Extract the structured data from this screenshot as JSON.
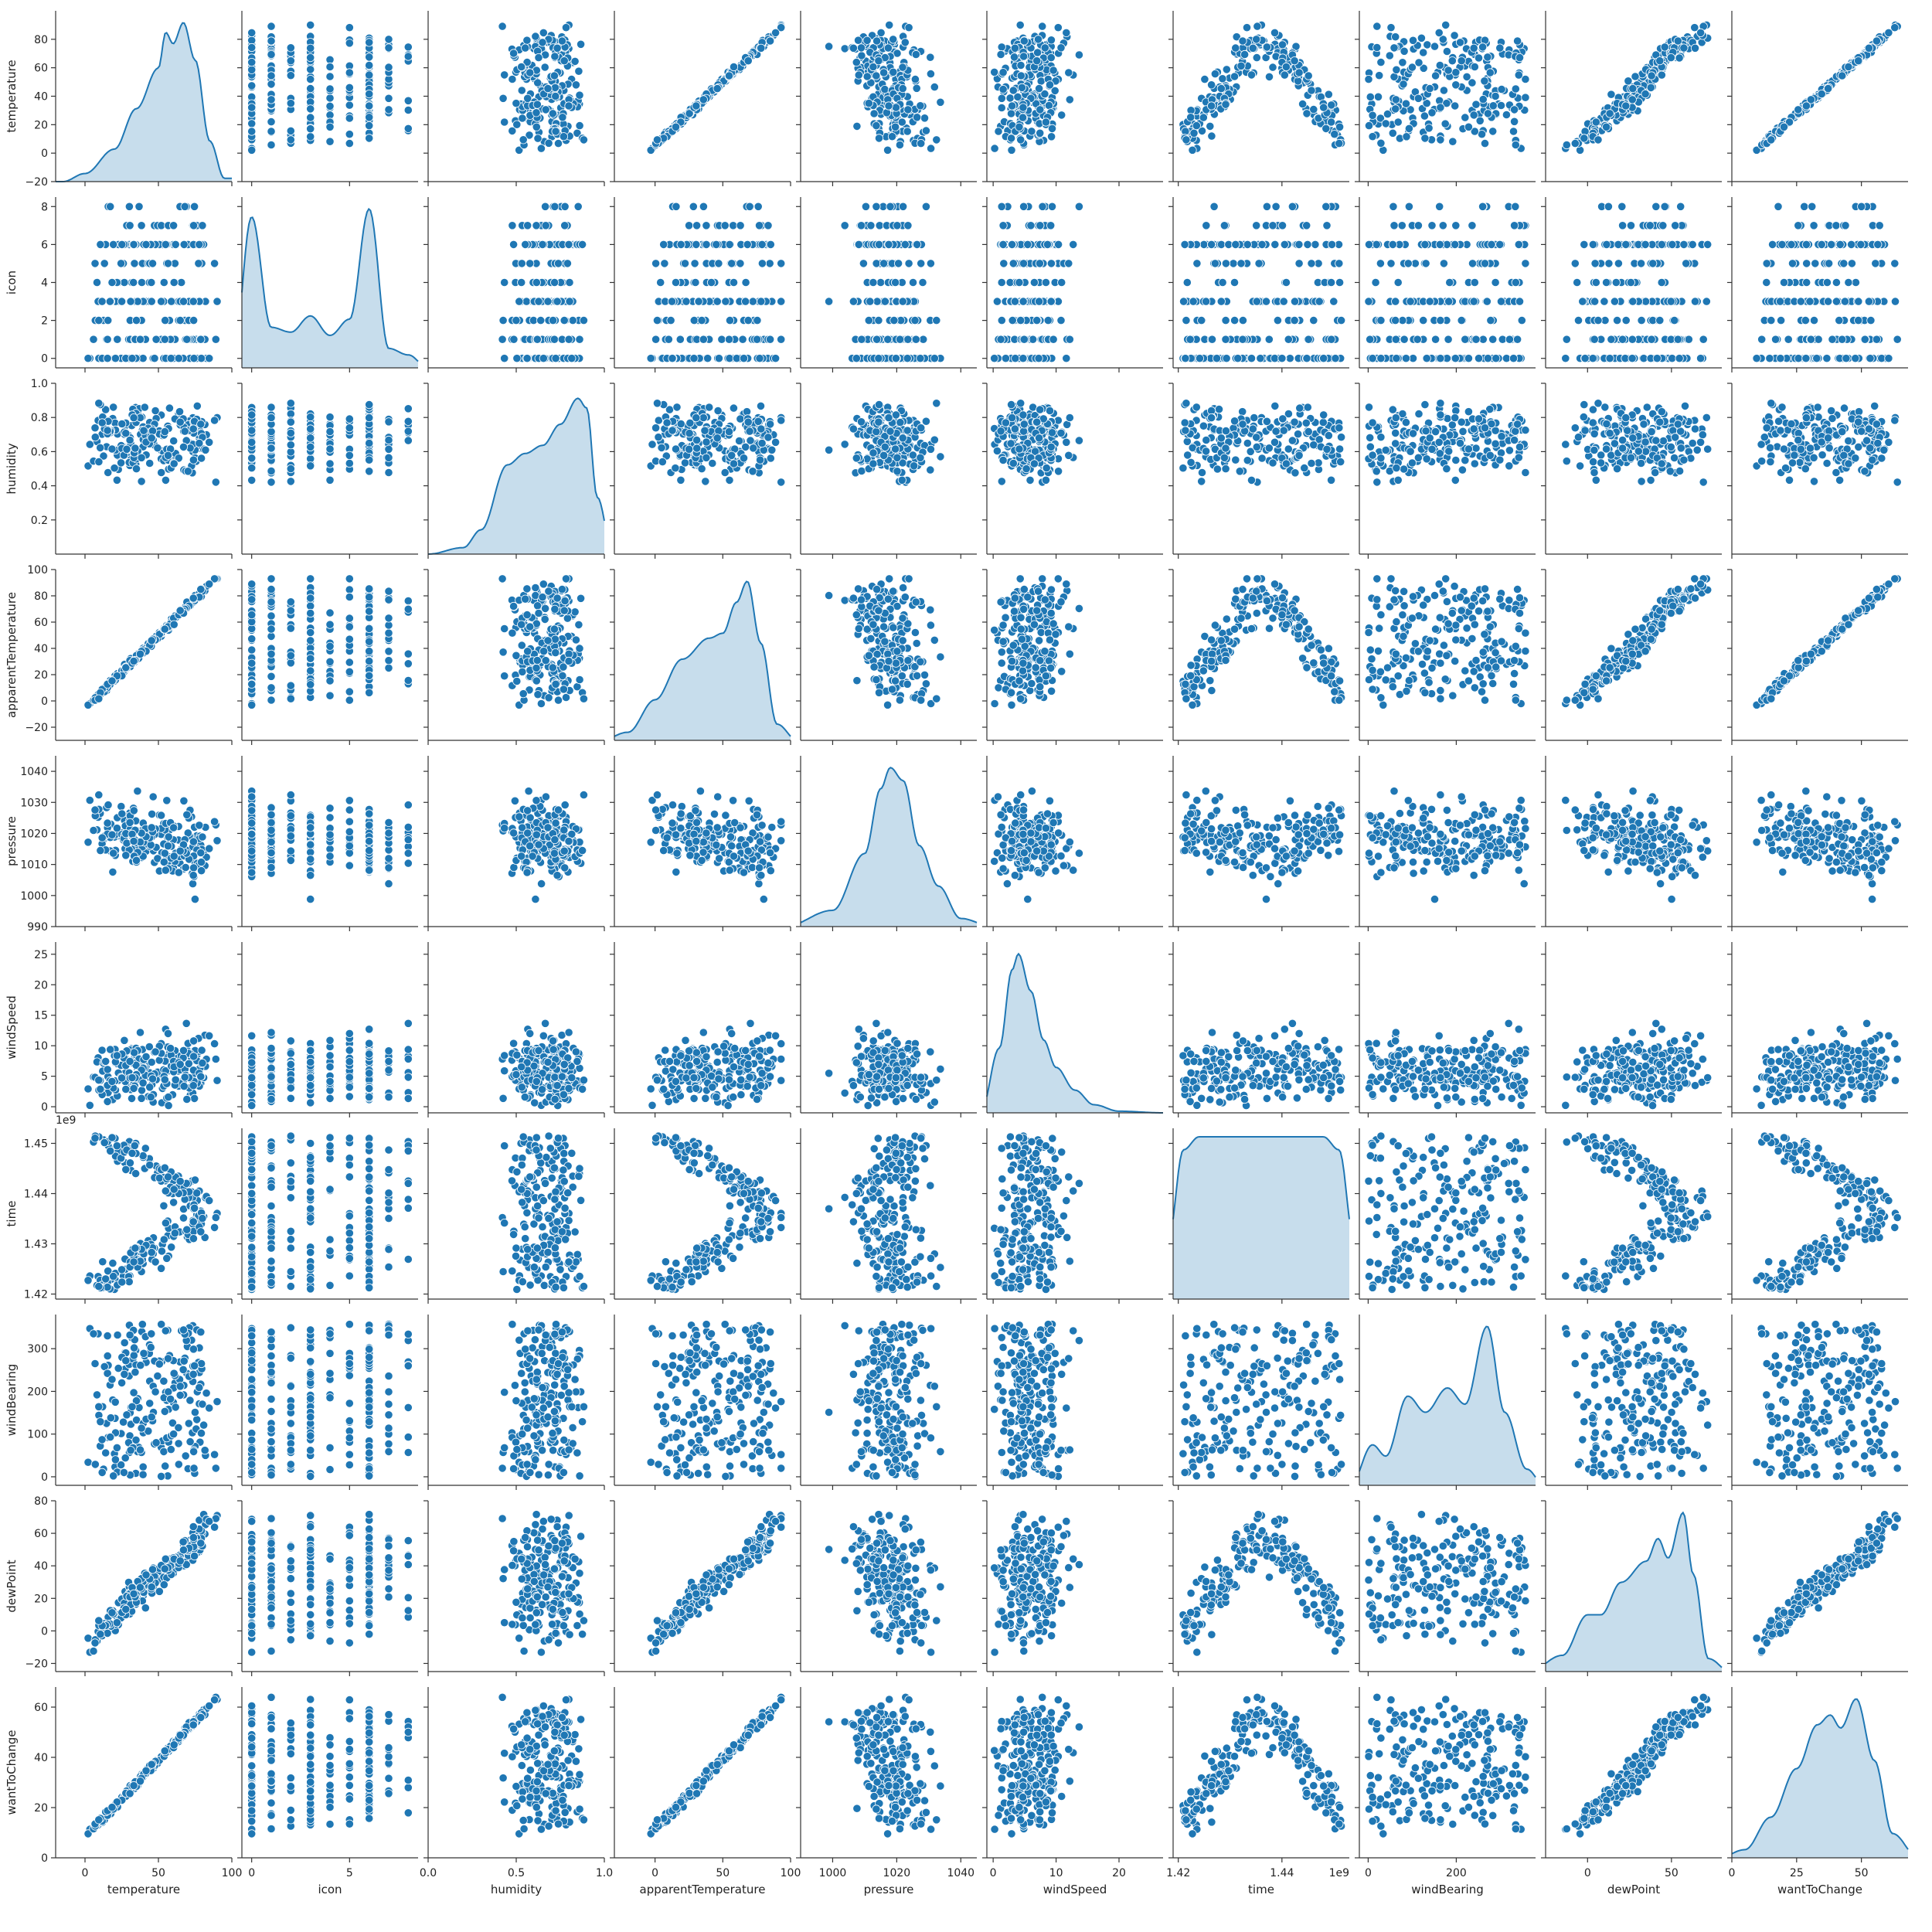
{
  "chart_data": {
    "type": "scatter",
    "kind": "pairplot",
    "diagonal_kind": "kde",
    "grid": false,
    "colors": {
      "marker": "#1f77b4",
      "marker_edge": "#ffffff",
      "kde_fill": "#1f77b4",
      "spines": "#333333"
    },
    "offset_labels": {
      "time": "1e9"
    },
    "variables": [
      {
        "name": "temperature",
        "range": [
          -20,
          100
        ],
        "ticks": [
          -20,
          0,
          20,
          40,
          60,
          80,
          100
        ],
        "x_tick_labels": [
          "0",
          "50",
          "100"
        ],
        "x_tick_values": [
          0,
          50,
          100
        ],
        "y_tick_labels": [
          "−20",
          "0",
          "20",
          "40",
          "60",
          "80"
        ],
        "y_tick_values": [
          -20,
          0,
          20,
          40,
          60,
          80
        ],
        "data_min": -13,
        "data_max": 90,
        "kde": [
          [
            -15,
            0.0
          ],
          [
            0,
            0.05
          ],
          [
            20,
            0.2
          ],
          [
            35,
            0.45
          ],
          [
            50,
            0.7
          ],
          [
            55,
            0.92
          ],
          [
            60,
            0.85
          ],
          [
            67,
            0.98
          ],
          [
            75,
            0.75
          ],
          [
            85,
            0.25
          ],
          [
            95,
            0.02
          ]
        ]
      },
      {
        "name": "icon",
        "range": [
          -0.5,
          8.5
        ],
        "x_tick_labels": [
          "0",
          "5"
        ],
        "x_tick_values": [
          0,
          5
        ],
        "y_tick_labels": [
          "0",
          "2",
          "4",
          "6",
          "8"
        ],
        "y_tick_values": [
          0,
          2,
          4,
          6,
          8
        ],
        "data_min": 0,
        "data_max": 8,
        "categorical": true,
        "levels": [
          0,
          1,
          2,
          3,
          4,
          5,
          6,
          7,
          8
        ],
        "kde": [
          [
            -1,
            0.0
          ],
          [
            0,
            0.93
          ],
          [
            1,
            0.25
          ],
          [
            2,
            0.22
          ],
          [
            3,
            0.32
          ],
          [
            4,
            0.2
          ],
          [
            5,
            0.3
          ],
          [
            6,
            0.98
          ],
          [
            7,
            0.12
          ],
          [
            8,
            0.08
          ],
          [
            9,
            0.0
          ]
        ]
      },
      {
        "name": "humidity",
        "range": [
          0.0,
          1.0
        ],
        "x_tick_labels": [
          "0.0",
          "0.5",
          "1.0"
        ],
        "x_tick_values": [
          0.0,
          0.5,
          1.0
        ],
        "y_tick_labels": [
          "0.2",
          "0.4",
          "0.6",
          "0.8",
          "1.0"
        ],
        "y_tick_values": [
          0.2,
          0.4,
          0.6,
          0.8,
          1.0
        ],
        "data_min": 0.14,
        "data_max": 0.98,
        "kde": [
          [
            0.0,
            0.0
          ],
          [
            0.2,
            0.04
          ],
          [
            0.3,
            0.15
          ],
          [
            0.45,
            0.55
          ],
          [
            0.55,
            0.62
          ],
          [
            0.65,
            0.67
          ],
          [
            0.75,
            0.8
          ],
          [
            0.85,
            0.96
          ],
          [
            0.9,
            0.9
          ],
          [
            0.96,
            0.35
          ],
          [
            1.05,
            0.0
          ]
        ]
      },
      {
        "name": "apparentTemperature",
        "range": [
          -30,
          100
        ],
        "x_tick_labels": [
          "0",
          "50",
          "100"
        ],
        "x_tick_values": [
          0,
          50,
          100
        ],
        "y_tick_labels": [
          "−20",
          "0",
          "20",
          "40",
          "60",
          "80",
          "100"
        ],
        "y_tick_values": [
          -20,
          0,
          20,
          40,
          60,
          80,
          100
        ],
        "data_min": -30,
        "data_max": 93,
        "kde": [
          [
            -40,
            0.0
          ],
          [
            -20,
            0.05
          ],
          [
            0,
            0.25
          ],
          [
            20,
            0.5
          ],
          [
            40,
            0.63
          ],
          [
            50,
            0.66
          ],
          [
            60,
            0.85
          ],
          [
            68,
            0.98
          ],
          [
            78,
            0.6
          ],
          [
            90,
            0.1
          ],
          [
            105,
            0.0
          ]
        ]
      },
      {
        "name": "pressure",
        "range": [
          990,
          1045
        ],
        "x_tick_labels": [
          "1000",
          "1020",
          "1040"
        ],
        "x_tick_values": [
          1000,
          1020,
          1040
        ],
        "y_tick_labels": [
          "990",
          "1000",
          "1010",
          "1020",
          "1030",
          "1040"
        ],
        "y_tick_values": [
          990,
          1000,
          1010,
          1020,
          1030,
          1040
        ],
        "data_min": 991,
        "data_max": 1044,
        "kde": [
          [
            985,
            0.0
          ],
          [
            1000,
            0.1
          ],
          [
            1010,
            0.45
          ],
          [
            1015,
            0.85
          ],
          [
            1018,
            0.98
          ],
          [
            1022,
            0.9
          ],
          [
            1027,
            0.5
          ],
          [
            1033,
            0.25
          ],
          [
            1040,
            0.05
          ],
          [
            1050,
            0.0
          ]
        ]
      },
      {
        "name": "windSpeed",
        "range": [
          -1,
          27
        ],
        "x_tick_labels": [
          "0",
          "10",
          "20"
        ],
        "x_tick_values": [
          0,
          10,
          20
        ],
        "y_tick_labels": [
          "0",
          "5",
          "10",
          "15",
          "20",
          "25"
        ],
        "y_tick_values": [
          0,
          5,
          10,
          15,
          20,
          25
        ],
        "data_min": 0,
        "data_max": 25,
        "kde": [
          [
            -2,
            0.0
          ],
          [
            1,
            0.4
          ],
          [
            3,
            0.88
          ],
          [
            4,
            0.98
          ],
          [
            6,
            0.75
          ],
          [
            8,
            0.45
          ],
          [
            10,
            0.28
          ],
          [
            13,
            0.14
          ],
          [
            16,
            0.05
          ],
          [
            20,
            0.01
          ],
          [
            27,
            0.0
          ]
        ]
      },
      {
        "name": "time",
        "range": [
          1.419,
          1.453
        ],
        "x_tick_labels": [
          "1.42",
          "1.44"
        ],
        "x_tick_values": [
          1.42,
          1.44
        ],
        "y_tick_labels": [
          "1.42",
          "1.43",
          "1.44",
          "1.45"
        ],
        "y_tick_values": [
          1.42,
          1.43,
          1.44,
          1.45
        ],
        "data_min": 1.4205,
        "data_max": 1.4515,
        "kde": [
          [
            1.412,
            0.0
          ],
          [
            1.418,
            0.35
          ],
          [
            1.421,
            0.92
          ],
          [
            1.424,
            1.0
          ],
          [
            1.448,
            1.0
          ],
          [
            1.451,
            0.92
          ],
          [
            1.454,
            0.35
          ],
          [
            1.46,
            0.0
          ]
        ]
      },
      {
        "name": "windBearing",
        "range": [
          -20,
          380
        ],
        "x_tick_labels": [
          "0",
          "200",
          "400"
        ],
        "x_tick_values": [
          0,
          200,
          400
        ],
        "y_tick_labels": [
          "0",
          "100",
          "200",
          "300"
        ],
        "y_tick_values": [
          0,
          100,
          200,
          300
        ],
        "data_min": 0,
        "data_max": 359,
        "kde": [
          [
            -40,
            0.0
          ],
          [
            10,
            0.25
          ],
          [
            40,
            0.18
          ],
          [
            90,
            0.55
          ],
          [
            130,
            0.45
          ],
          [
            180,
            0.6
          ],
          [
            220,
            0.5
          ],
          [
            270,
            0.98
          ],
          [
            310,
            0.45
          ],
          [
            360,
            0.1
          ],
          [
            400,
            0.0
          ]
        ]
      },
      {
        "name": "dewPoint",
        "range": [
          -25,
          80
        ],
        "x_tick_labels": [
          "0",
          "50"
        ],
        "x_tick_values": [
          0,
          50
        ],
        "y_tick_labels": [
          "−20",
          "0",
          "20",
          "40",
          "60",
          "80"
        ],
        "y_tick_values": [
          -20,
          0,
          20,
          40,
          60,
          80
        ],
        "data_min": -20,
        "data_max": 74,
        "kde": [
          [
            -35,
            0.0
          ],
          [
            -15,
            0.1
          ],
          [
            0,
            0.35
          ],
          [
            8,
            0.35
          ],
          [
            20,
            0.55
          ],
          [
            35,
            0.68
          ],
          [
            42,
            0.82
          ],
          [
            48,
            0.7
          ],
          [
            57,
            0.98
          ],
          [
            63,
            0.6
          ],
          [
            72,
            0.08
          ],
          [
            85,
            0.0
          ]
        ]
      },
      {
        "name": "wantToChange",
        "range": [
          0,
          68
        ],
        "x_tick_labels": [
          "0",
          "25",
          "50",
          "75"
        ],
        "x_tick_values": [
          0,
          25,
          50,
          75
        ],
        "y_tick_labels": [
          "0",
          "20",
          "40",
          "60"
        ],
        "y_tick_values": [
          0,
          20,
          40,
          60
        ],
        "data_min": 2,
        "data_max": 65,
        "kde": [
          [
            -5,
            0.0
          ],
          [
            5,
            0.05
          ],
          [
            15,
            0.25
          ],
          [
            25,
            0.55
          ],
          [
            33,
            0.82
          ],
          [
            38,
            0.88
          ],
          [
            42,
            0.8
          ],
          [
            48,
            0.98
          ],
          [
            55,
            0.6
          ],
          [
            62,
            0.15
          ],
          [
            72,
            0.0
          ]
        ]
      }
    ],
    "relationships": {
      "linear_pairs": [
        [
          "temperature",
          "apparentTemperature"
        ],
        [
          "temperature",
          "wantToChange"
        ],
        [
          "apparentTemperature",
          "wantToChange"
        ]
      ],
      "correlated_pairs": [
        [
          "temperature",
          "dewPoint"
        ],
        [
          "apparentTemperature",
          "dewPoint"
        ],
        [
          "dewPoint",
          "wantToChange"
        ]
      ],
      "seasonal_with_time": [
        "temperature",
        "apparentTemperature",
        "dewPoint",
        "wantToChange"
      ]
    }
  }
}
